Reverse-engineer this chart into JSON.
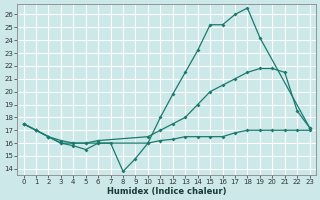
{
  "xlabel": "Humidex (Indice chaleur)",
  "background_color": "#cce8e8",
  "line_color": "#1a7a6e",
  "grid_color": "#ffffff",
  "xlim": [
    -0.5,
    23.5
  ],
  "ylim": [
    13.5,
    26.8
  ],
  "yticks": [
    14,
    15,
    16,
    17,
    18,
    19,
    20,
    21,
    22,
    23,
    24,
    25,
    26
  ],
  "xticks": [
    0,
    1,
    2,
    3,
    4,
    5,
    6,
    7,
    8,
    9,
    10,
    11,
    12,
    13,
    14,
    15,
    16,
    17,
    18,
    19,
    20,
    21,
    22,
    23
  ],
  "series": [
    {
      "x": [
        0,
        1,
        2,
        3,
        4,
        5,
        6,
        10,
        11,
        12,
        13,
        14,
        15,
        16,
        17,
        18,
        19,
        23
      ],
      "y": [
        17.5,
        17.0,
        16.5,
        16.0,
        16.0,
        16.0,
        16.0,
        16.0,
        18.0,
        19.8,
        21.5,
        23.2,
        25.2,
        25.2,
        26.0,
        26.5,
        24.2,
        17.2
      ]
    },
    {
      "x": [
        0,
        1,
        2,
        3,
        4,
        5,
        6,
        10,
        11,
        12,
        13,
        14,
        15,
        16,
        17,
        18,
        19,
        20,
        21,
        22,
        23
      ],
      "y": [
        17.5,
        17.0,
        16.5,
        16.2,
        16.0,
        16.0,
        16.2,
        16.5,
        17.0,
        17.5,
        18.0,
        19.0,
        20.0,
        20.5,
        21.0,
        21.5,
        21.8,
        21.8,
        21.5,
        18.5,
        17.2
      ]
    },
    {
      "x": [
        0,
        1,
        2,
        3,
        4,
        5,
        6,
        7,
        8,
        9,
        10,
        11,
        12,
        13,
        14,
        15,
        16,
        17,
        18,
        19,
        20,
        21,
        22,
        23
      ],
      "y": [
        17.5,
        17.0,
        16.5,
        16.0,
        15.8,
        15.5,
        16.0,
        16.0,
        13.8,
        14.8,
        16.0,
        16.2,
        16.3,
        16.5,
        16.5,
        16.5,
        16.5,
        16.8,
        17.0,
        17.0,
        17.0,
        17.0,
        17.0,
        17.0
      ]
    }
  ]
}
